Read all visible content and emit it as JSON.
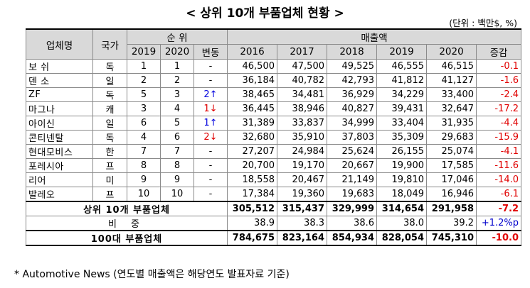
{
  "title": "< 상위 10개 부품업체 현황 >",
  "unit": "(단위 : 백만$, %)",
  "headers": {
    "company": "업체명",
    "country": "국가",
    "rank": "순 위",
    "sales": "매출액",
    "rank_years": [
      "2019",
      "2020"
    ],
    "movement": "변동",
    "sales_years": [
      "2016",
      "2017",
      "2018",
      "2019",
      "2020"
    ],
    "change": "증감"
  },
  "rows": [
    {
      "name": "보 쉬",
      "country": "독",
      "r2019": "1",
      "r2020": "1",
      "move": "-",
      "dir": "none",
      "s2016": "46,500",
      "s2017": "47,500",
      "s2018": "49,525",
      "s2019": "46,555",
      "s2020": "46,515",
      "chg": "-0.1"
    },
    {
      "name": "덴 소",
      "country": "일",
      "r2019": "2",
      "r2020": "2",
      "move": "-",
      "dir": "none",
      "s2016": "36,184",
      "s2017": "40,782",
      "s2018": "42,793",
      "s2019": "41,812",
      "s2020": "41,127",
      "chg": "-1.6"
    },
    {
      "name": "ZF",
      "country": "독",
      "r2019": "5",
      "r2020": "3",
      "move": "2↑",
      "dir": "up",
      "s2016": "38,465",
      "s2017": "34,481",
      "s2018": "36,929",
      "s2019": "34,229",
      "s2020": "33,400",
      "chg": "-2.4"
    },
    {
      "name": "마그나",
      "country": "캐",
      "r2019": "3",
      "r2020": "4",
      "move": "1↓",
      "dir": "down",
      "s2016": "36,445",
      "s2017": "38,946",
      "s2018": "40,827",
      "s2019": "39,431",
      "s2020": "32,647",
      "chg": "-17.2"
    },
    {
      "name": "아이신",
      "country": "일",
      "r2019": "6",
      "r2020": "5",
      "move": "1↑",
      "dir": "up",
      "s2016": "31,389",
      "s2017": "33,837",
      "s2018": "34,999",
      "s2019": "33,404",
      "s2020": "31,935",
      "chg": "-4.4"
    },
    {
      "name": "콘티넨탈",
      "country": "독",
      "r2019": "4",
      "r2020": "6",
      "move": "2↓",
      "dir": "down",
      "s2016": "32,680",
      "s2017": "35,910",
      "s2018": "37,803",
      "s2019": "35,309",
      "s2020": "29,683",
      "chg": "-15.9"
    },
    {
      "name": "현대모비스",
      "country": "한",
      "r2019": "7",
      "r2020": "7",
      "move": "-",
      "dir": "none",
      "s2016": "27,207",
      "s2017": "24,984",
      "s2018": "25,624",
      "s2019": "26,155",
      "s2020": "25,074",
      "chg": "-4.1"
    },
    {
      "name": "포레시아",
      "country": "프",
      "r2019": "8",
      "r2020": "8",
      "move": "-",
      "dir": "none",
      "s2016": "20,700",
      "s2017": "19,170",
      "s2018": "20,667",
      "s2019": "19,900",
      "s2020": "17,585",
      "chg": "-11.6"
    },
    {
      "name": "리어",
      "country": "미",
      "r2019": "9",
      "r2020": "9",
      "move": "-",
      "dir": "none",
      "s2016": "18,558",
      "s2017": "20,467",
      "s2018": "21,149",
      "s2019": "19,810",
      "s2020": "17,046",
      "chg": "-14.0"
    },
    {
      "name": "발레오",
      "country": "프",
      "r2019": "10",
      "r2020": "10",
      "move": "-",
      "dir": "none",
      "s2016": "17,384",
      "s2017": "19,360",
      "s2018": "19,683",
      "s2019": "18,049",
      "s2020": "16,946",
      "chg": "-6.1"
    }
  ],
  "top10": {
    "label": "상위 10개 부품업체",
    "s2016": "305,512",
    "s2017": "315,437",
    "s2018": "329,999",
    "s2019": "314,654",
    "s2020": "291,958",
    "chg": "-7.2"
  },
  "weight": {
    "label": "비 중",
    "s2016": "38.9",
    "s2017": "38.3",
    "s2018": "38.6",
    "s2019": "38.0",
    "s2020": "39.2",
    "chg": "+1.2%p"
  },
  "top100": {
    "label": "100대 부품업체",
    "s2016": "784,675",
    "s2017": "823,164",
    "s2018": "854,934",
    "s2019": "828,054",
    "s2020": "745,310",
    "chg": "-10.0"
  },
  "footnote": "* Automotive News (연도별 매출액은 해당연도 발표자료 기준)"
}
